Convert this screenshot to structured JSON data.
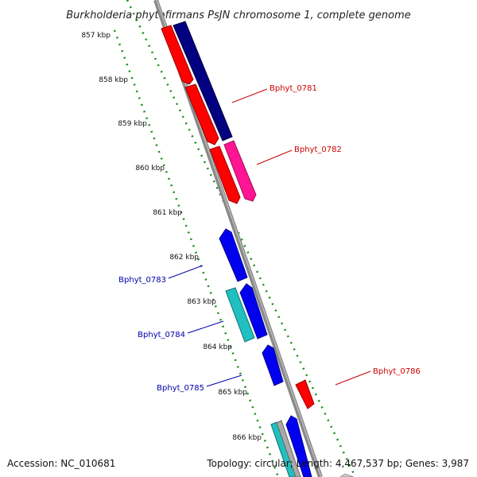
{
  "title": "Burkholderia phytofirmans PsJN chromosome 1, complete genome",
  "footer": {
    "accession": "Accession: NC_010681",
    "summary": "Topology: circular; Length: 4,467,537 bp; Genes: 3,987"
  },
  "colors": {
    "backbone": "#888888",
    "ruler": "#1a8a1a",
    "red": "#ff0000",
    "navy": "#000080",
    "pink": "#ff1493",
    "blue": "#0000ee",
    "cyan": "#20c0c0",
    "label_red": "#cc0000",
    "label_blue": "#0000aa"
  },
  "ruler_ticks": [
    "857 kbp",
    "858 kbp",
    "859 kbp",
    "860 kbp",
    "861 kbp",
    "862 kbp",
    "863 kbp",
    "864 kbp",
    "865 kbp",
    "866 kbp"
  ],
  "gene_labels": [
    "Bphyt_0781",
    "Bphyt_0782",
    "Bphyt_0783",
    "Bphyt_0784",
    "Bphyt_0785",
    "Bphyt_0786"
  ]
}
